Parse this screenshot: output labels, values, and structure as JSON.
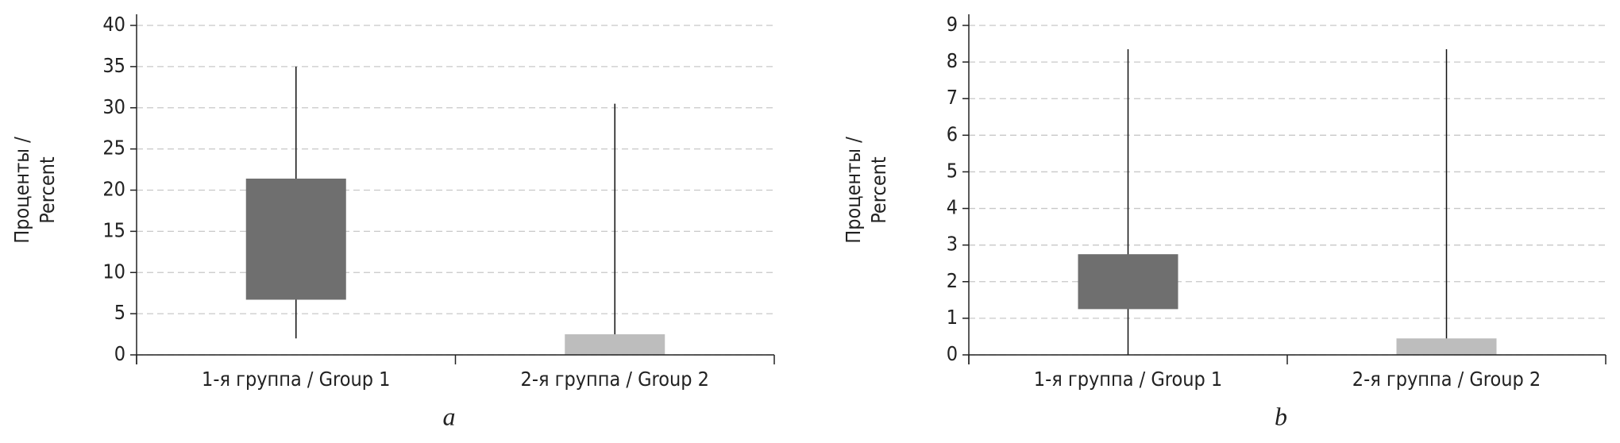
{
  "chart_data": [
    {
      "type": "box",
      "ylabel": [
        "Проценты /",
        "Percent"
      ],
      "panel_label": "a",
      "categories": [
        "1-я группа / Group 1",
        "2-я группа / Group 2"
      ],
      "boxes": [
        {
          "low": 2,
          "q1": 6.7,
          "q3": 21.4,
          "high": 35,
          "color": "#6f6f6f"
        },
        {
          "low": 0,
          "q1": 0,
          "q3": 2.5,
          "high": 30.5,
          "color": "#bdbdbd"
        }
      ],
      "ylim": [
        0,
        40
      ],
      "yticks": [
        0,
        5,
        10,
        15,
        20,
        25,
        30,
        35,
        40
      ],
      "grid": true
    },
    {
      "type": "box",
      "ylabel": [
        "Проценты /",
        "Percent"
      ],
      "panel_label": "b",
      "categories": [
        "1-я группа / Group 1",
        "2-я группа / Group 2"
      ],
      "boxes": [
        {
          "low": 0,
          "q1": 1.25,
          "q3": 2.75,
          "high": 8.35,
          "color": "#6f6f6f"
        },
        {
          "low": 0,
          "q1": 0,
          "q3": 0.45,
          "high": 8.35,
          "color": "#bdbdbd"
        }
      ],
      "ylim": [
        0,
        9
      ],
      "yticks": [
        0,
        1,
        2,
        3,
        4,
        5,
        6,
        7,
        8,
        9
      ],
      "grid": true
    }
  ]
}
